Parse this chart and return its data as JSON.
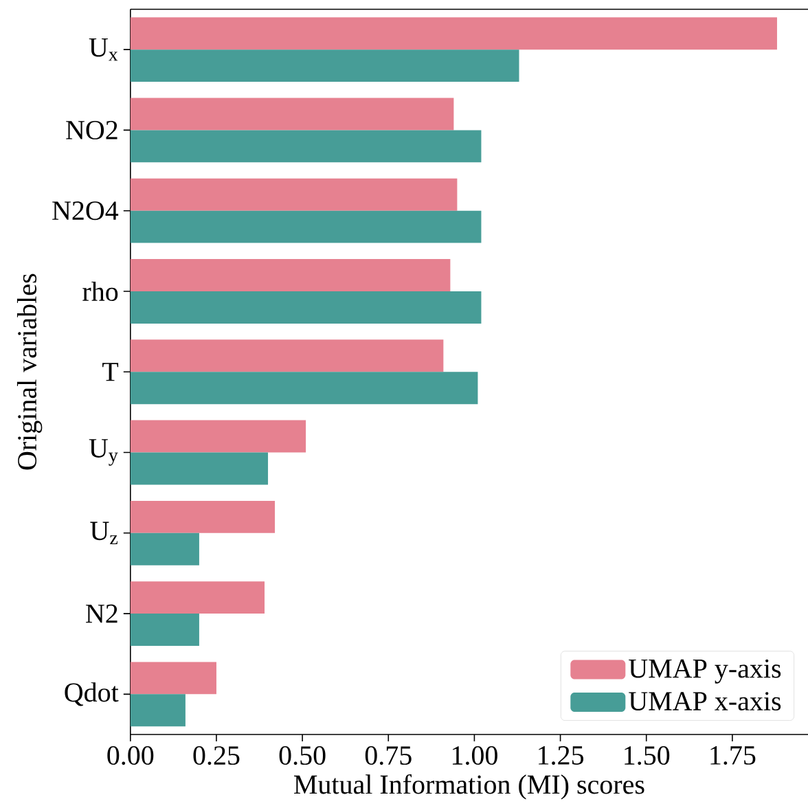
{
  "chart_data": {
    "type": "bar",
    "orientation": "horizontal",
    "xlabel": "Mutual Information (MI) scores",
    "ylabel": "Original variables",
    "categories": [
      "U$_{x}$",
      "NO2",
      "N2O4",
      "rho",
      "T",
      "U$_{y}$",
      "U$_{z}$",
      "N2",
      "Qdot"
    ],
    "series": [
      {
        "name": "UMAP y-axis",
        "color": "#e68190",
        "values": [
          1.88,
          0.94,
          0.95,
          0.93,
          0.91,
          0.51,
          0.42,
          0.39,
          0.25
        ]
      },
      {
        "name": "UMAP x-axis",
        "color": "#479d97",
        "values": [
          1.13,
          1.02,
          1.02,
          1.02,
          1.01,
          0.4,
          0.2,
          0.2,
          0.16
        ]
      }
    ],
    "xlim": [
      0,
      1.97
    ],
    "xticks": [
      {
        "value": 0,
        "label": "0.00"
      },
      0.25,
      {
        "value": 0.5,
        "label": "0.50"
      },
      0.75,
      {
        "value": 1,
        "label": "1.00"
      },
      1.25,
      {
        "value": 1.5,
        "label": "1.50"
      },
      1.75
    ],
    "legend": "bottom right"
  }
}
